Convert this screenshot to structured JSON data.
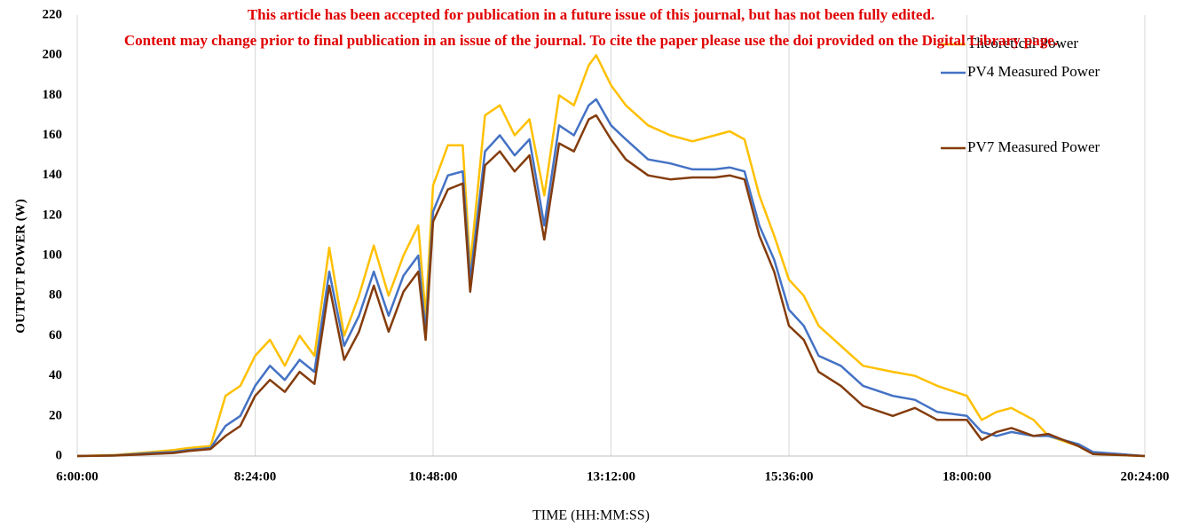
{
  "notice": [
    "This article has been accepted for publication in a future issue of this journal, but has not been fully edited.",
    "Content may change prior to final publication in an issue of the journal. To cite the paper please use the doi provided on the Digital Library page."
  ],
  "chart_data": {
    "type": "line",
    "xlabel": "TIME (HH:MM:SS)",
    "ylabel": "OUTPUT POWER (W)",
    "x": [
      6.0,
      6.5,
      7.0,
      7.3,
      7.5,
      7.8,
      8.0,
      8.2,
      8.4,
      8.6,
      8.8,
      9.0,
      9.2,
      9.4,
      9.6,
      9.8,
      10.0,
      10.2,
      10.4,
      10.6,
      10.7,
      10.8,
      11.0,
      11.2,
      11.3,
      11.5,
      11.7,
      11.9,
      12.1,
      12.3,
      12.5,
      12.7,
      12.9,
      13.0,
      13.2,
      13.4,
      13.7,
      14.0,
      14.3,
      14.6,
      14.8,
      15.0,
      15.2,
      15.4,
      15.6,
      15.8,
      16.0,
      16.3,
      16.6,
      17.0,
      17.3,
      17.6,
      18.0,
      18.2,
      18.4,
      18.6,
      18.9,
      19.1,
      19.5,
      19.7,
      20.4
    ],
    "series": [
      {
        "name": "Theoretical Power",
        "color": "#ffc000",
        "values": [
          0,
          0.5,
          2,
          3,
          4,
          5,
          30,
          35,
          50,
          58,
          45,
          60,
          50,
          104,
          60,
          80,
          105,
          80,
          100,
          115,
          70,
          135,
          155,
          155,
          95,
          170,
          175,
          160,
          168,
          130,
          180,
          175,
          195,
          200,
          185,
          175,
          165,
          160,
          157,
          160,
          162,
          158,
          130,
          110,
          88,
          80,
          65,
          55,
          45,
          42,
          40,
          35,
          30,
          18,
          22,
          24,
          18,
          10,
          5,
          1,
          0
        ]
      },
      {
        "name": "PV4 Measured Power",
        "color": "#4472c4",
        "values": [
          0,
          0.3,
          1.5,
          2,
          3,
          4,
          15,
          20,
          35,
          45,
          38,
          48,
          42,
          92,
          55,
          70,
          92,
          70,
          90,
          100,
          62,
          122,
          140,
          142,
          88,
          152,
          160,
          150,
          158,
          115,
          165,
          160,
          175,
          178,
          165,
          158,
          148,
          146,
          143,
          143,
          144,
          142,
          115,
          98,
          73,
          65,
          50,
          45,
          35,
          30,
          28,
          22,
          20,
          12,
          10,
          12,
          10,
          10,
          6,
          2,
          0
        ]
      },
      {
        "name": "PV7 Measured Power",
        "color": "#843c0c",
        "values": [
          0,
          0.2,
          1,
          1.5,
          2.5,
          3.5,
          10,
          15,
          30,
          38,
          32,
          42,
          36,
          85,
          48,
          62,
          85,
          62,
          82,
          92,
          58,
          117,
          133,
          136,
          82,
          145,
          152,
          142,
          150,
          108,
          156,
          152,
          168,
          170,
          158,
          148,
          140,
          138,
          139,
          139,
          140,
          138,
          110,
          92,
          65,
          58,
          42,
          35,
          25,
          20,
          24,
          18,
          18,
          8,
          12,
          14,
          10,
          11,
          5,
          1,
          0
        ]
      }
    ],
    "xlim": [
      6,
      20.4
    ],
    "xticks": [
      {
        "value": 6,
        "label": "6:00:00"
      },
      {
        "value": 8.4,
        "label": "8:24:00"
      },
      {
        "value": 10.8,
        "label": "10:48:00"
      },
      {
        "value": 13.2,
        "label": "13:12:00"
      },
      {
        "value": 15.6,
        "label": "15:36:00"
      },
      {
        "value": 18,
        "label": "18:00:00"
      },
      {
        "value": 20.4,
        "label": "20:24:00"
      }
    ],
    "ylim": [
      0,
      220
    ],
    "yticks": [
      0,
      20,
      40,
      60,
      80,
      100,
      120,
      140,
      160,
      180,
      200,
      220
    ],
    "grid_x": true,
    "legend": "right"
  }
}
